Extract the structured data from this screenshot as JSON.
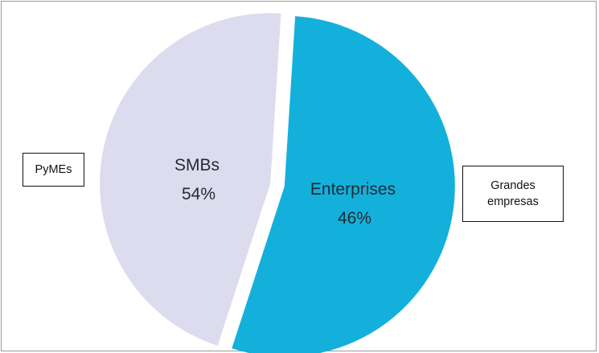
{
  "chart_data": {
    "type": "pie",
    "title": "",
    "slices": [
      {
        "name": "SMBs",
        "value": 54,
        "value_label": "54%",
        "color": "#14b0dc"
      },
      {
        "name": "Enterprises",
        "value": 46,
        "value_label": "46%",
        "color": "#dcdcee"
      }
    ],
    "callouts": [
      {
        "text_lines": [
          "PyMEs"
        ]
      },
      {
        "text_lines": [
          "Grandes",
          "empresas"
        ]
      }
    ],
    "exploded": true,
    "legend": "none"
  }
}
